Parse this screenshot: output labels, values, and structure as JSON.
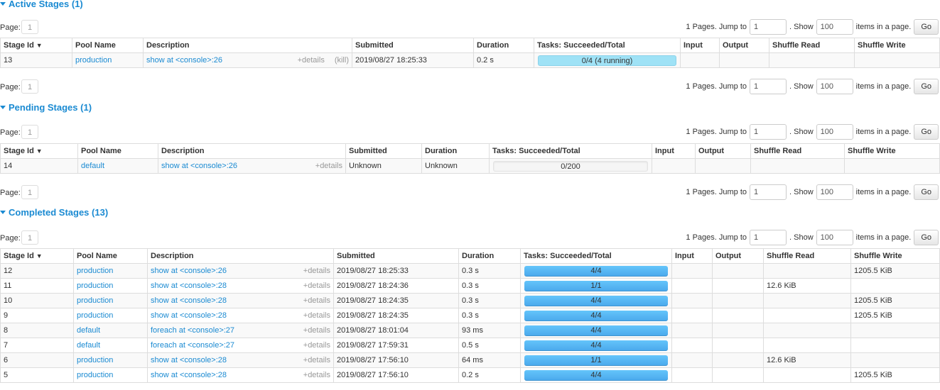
{
  "pager": {
    "page_label": "Page:",
    "current_page": "1",
    "pages_text": "1 Pages. Jump to",
    "jump_value": "1",
    "show_text": ". Show",
    "show_value": "100",
    "items_text": "items in a page.",
    "go_label": "Go"
  },
  "columns": [
    "Stage Id",
    "Pool Name",
    "Description",
    "Submitted",
    "Duration",
    "Tasks: Succeeded/Total",
    "Input",
    "Output",
    "Shuffle Read",
    "Shuffle Write"
  ],
  "sort_indicator": "▼",
  "details_label": "+details",
  "kill_label": "(kill)",
  "colors": {
    "accent": "#1a8ad2",
    "bar_done": "#5bb8f5",
    "bar_running": "#9fe2f6"
  },
  "sections": [
    {
      "title": "Active Stages (1)",
      "status": "active",
      "rows": [
        {
          "id": "13",
          "pool": "production",
          "desc": "show at <console>:26",
          "submitted": "2019/08/27 18:25:33",
          "duration": "0.2 s",
          "tasks": "0/4 (4 running)",
          "succeeded": 0,
          "total": 4,
          "running": 4,
          "input": "",
          "output": "",
          "shuffle_read": "",
          "shuffle_write": "",
          "kill": true
        }
      ]
    },
    {
      "title": "Pending Stages (1)",
      "status": "pending",
      "rows": [
        {
          "id": "14",
          "pool": "default",
          "desc": "show at <console>:26",
          "submitted": "Unknown",
          "duration": "Unknown",
          "tasks": "0/200",
          "succeeded": 0,
          "total": 200,
          "running": 0,
          "input": "",
          "output": "",
          "shuffle_read": "",
          "shuffle_write": ""
        }
      ]
    },
    {
      "title": "Completed Stages (13)",
      "status": "completed",
      "rows": [
        {
          "id": "12",
          "pool": "production",
          "desc": "show at <console>:26",
          "submitted": "2019/08/27 18:25:33",
          "duration": "0.3 s",
          "tasks": "4/4",
          "succeeded": 4,
          "total": 4,
          "input": "",
          "output": "",
          "shuffle_read": "",
          "shuffle_write": "1205.5 KiB"
        },
        {
          "id": "11",
          "pool": "production",
          "desc": "show at <console>:28",
          "submitted": "2019/08/27 18:24:36",
          "duration": "0.3 s",
          "tasks": "1/1",
          "succeeded": 1,
          "total": 1,
          "input": "",
          "output": "",
          "shuffle_read": "12.6 KiB",
          "shuffle_write": ""
        },
        {
          "id": "10",
          "pool": "production",
          "desc": "show at <console>:28",
          "submitted": "2019/08/27 18:24:35",
          "duration": "0.3 s",
          "tasks": "4/4",
          "succeeded": 4,
          "total": 4,
          "input": "",
          "output": "",
          "shuffle_read": "",
          "shuffle_write": "1205.5 KiB"
        },
        {
          "id": "9",
          "pool": "production",
          "desc": "show at <console>:28",
          "submitted": "2019/08/27 18:24:35",
          "duration": "0.3 s",
          "tasks": "4/4",
          "succeeded": 4,
          "total": 4,
          "input": "",
          "output": "",
          "shuffle_read": "",
          "shuffle_write": "1205.5 KiB"
        },
        {
          "id": "8",
          "pool": "default",
          "desc": "foreach at <console>:27",
          "submitted": "2019/08/27 18:01:04",
          "duration": "93 ms",
          "tasks": "4/4",
          "succeeded": 4,
          "total": 4,
          "input": "",
          "output": "",
          "shuffle_read": "",
          "shuffle_write": ""
        },
        {
          "id": "7",
          "pool": "default",
          "desc": "foreach at <console>:27",
          "submitted": "2019/08/27 17:59:31",
          "duration": "0.5 s",
          "tasks": "4/4",
          "succeeded": 4,
          "total": 4,
          "input": "",
          "output": "",
          "shuffle_read": "",
          "shuffle_write": ""
        },
        {
          "id": "6",
          "pool": "production",
          "desc": "show at <console>:28",
          "submitted": "2019/08/27 17:56:10",
          "duration": "64 ms",
          "tasks": "1/1",
          "succeeded": 1,
          "total": 1,
          "input": "",
          "output": "",
          "shuffle_read": "12.6 KiB",
          "shuffle_write": ""
        },
        {
          "id": "5",
          "pool": "production",
          "desc": "show at <console>:28",
          "submitted": "2019/08/27 17:56:10",
          "duration": "0.2 s",
          "tasks": "4/4",
          "succeeded": 4,
          "total": 4,
          "input": "",
          "output": "",
          "shuffle_read": "",
          "shuffle_write": "1205.5 KiB"
        }
      ]
    }
  ]
}
